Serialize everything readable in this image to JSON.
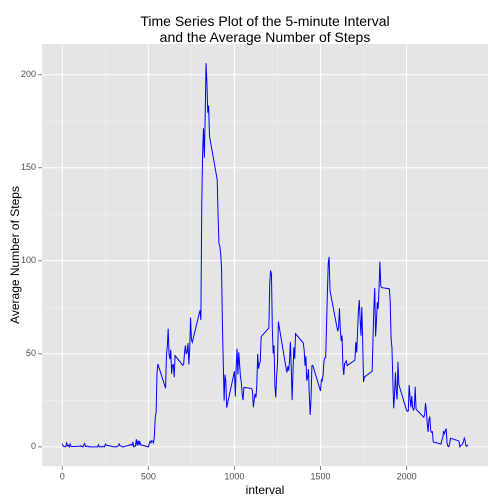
{
  "chart_data": {
    "type": "line",
    "title": "Time Series Plot of the 5-minute Interval\nand the Average Number of Steps",
    "xlabel": "interval",
    "ylabel": "Average Number of Steps",
    "x": [
      0,
      5,
      10,
      15,
      20,
      25,
      30,
      35,
      40,
      45,
      50,
      55,
      100,
      105,
      110,
      115,
      120,
      125,
      130,
      135,
      140,
      145,
      150,
      155,
      200,
      205,
      210,
      215,
      220,
      225,
      230,
      235,
      240,
      245,
      250,
      255,
      300,
      305,
      310,
      315,
      320,
      325,
      330,
      335,
      340,
      345,
      350,
      355,
      400,
      405,
      410,
      415,
      420,
      425,
      430,
      435,
      440,
      445,
      450,
      455,
      500,
      505,
      510,
      515,
      520,
      525,
      530,
      535,
      540,
      545,
      550,
      555,
      600,
      605,
      610,
      615,
      620,
      625,
      630,
      635,
      640,
      645,
      650,
      655,
      700,
      705,
      710,
      715,
      720,
      725,
      730,
      735,
      740,
      745,
      750,
      755,
      800,
      805,
      810,
      815,
      820,
      825,
      830,
      835,
      840,
      845,
      850,
      855,
      900,
      905,
      910,
      915,
      920,
      925,
      930,
      935,
      940,
      945,
      950,
      955,
      1000,
      1005,
      1010,
      1015,
      1020,
      1025,
      1030,
      1035,
      1040,
      1045,
      1050,
      1055,
      1100,
      1105,
      1110,
      1115,
      1120,
      1125,
      1130,
      1135,
      1140,
      1145,
      1150,
      1155,
      1200,
      1205,
      1210,
      1215,
      1220,
      1225,
      1230,
      1235,
      1240,
      1245,
      1250,
      1255,
      1300,
      1305,
      1310,
      1315,
      1320,
      1325,
      1330,
      1335,
      1340,
      1345,
      1350,
      1355,
      1400,
      1405,
      1410,
      1415,
      1420,
      1425,
      1430,
      1435,
      1440,
      1445,
      1450,
      1455,
      1500,
      1505,
      1510,
      1515,
      1520,
      1525,
      1530,
      1535,
      1540,
      1545,
      1550,
      1555,
      1600,
      1605,
      1610,
      1615,
      1620,
      1625,
      1630,
      1635,
      1640,
      1645,
      1650,
      1655,
      1700,
      1705,
      1710,
      1715,
      1720,
      1725,
      1730,
      1735,
      1740,
      1745,
      1750,
      1755,
      1800,
      1805,
      1810,
      1815,
      1820,
      1825,
      1830,
      1835,
      1840,
      1845,
      1850,
      1855,
      1900,
      1905,
      1910,
      1915,
      1920,
      1925,
      1930,
      1935,
      1940,
      1945,
      1950,
      1955,
      2000,
      2005,
      2010,
      2015,
      2020,
      2025,
      2030,
      2035,
      2040,
      2045,
      2050,
      2055,
      2100,
      2105,
      2110,
      2115,
      2120,
      2125,
      2130,
      2135,
      2140,
      2145,
      2150,
      2155,
      2200,
      2205,
      2210,
      2215,
      2220,
      2225,
      2230,
      2235,
      2240,
      2245,
      2250,
      2255,
      2300,
      2305,
      2310,
      2315,
      2320,
      2325,
      2330,
      2335,
      2340,
      2345,
      2350,
      2355
    ],
    "series": [
      {
        "name": "Average Number of Steps",
        "color": "#0000ff",
        "values": [
          1.7,
          0.3,
          0.1,
          0.2,
          0.1,
          2.1,
          0.5,
          0.9,
          0,
          1.5,
          0.3,
          0.1,
          0.3,
          0.7,
          0.2,
          0.3,
          0,
          1.1,
          1.8,
          0.2,
          0.2,
          0.4,
          0.3,
          0,
          0,
          0,
          1.1,
          0,
          0,
          0.1,
          0,
          0.2,
          0,
          0,
          1.5,
          0.9,
          0,
          0,
          0,
          0,
          0.2,
          0.6,
          1.6,
          0.6,
          0.5,
          0.1,
          0,
          0,
          1.2,
          0.9,
          2.6,
          0,
          0.3,
          0.4,
          4.1,
          0.7,
          3.5,
          0.8,
          3.1,
          1.1,
          0,
          1.6,
          3,
          2.2,
          3.3,
          3,
          2.1,
          6.1,
          16,
          18.3,
          39.5,
          44.5,
          31.5,
          49.3,
          53.8,
          63.5,
          50,
          47.1,
          52.2,
          39.3,
          44,
          44.2,
          37.4,
          49,
          43.8,
          44.4,
          50.5,
          54.5,
          49.9,
          51,
          55.7,
          44.3,
          52.3,
          69.5,
          57.8,
          56.2,
          73.4,
          68.2,
          129.4,
          157.5,
          171.2,
          155.4,
          177.3,
          206.2,
          195.9,
          179.6,
          183.4,
          167,
          143.5,
          124,
          109.1,
          108.1,
          103.7,
          96,
          66.2,
          45.2,
          24.8,
          38.8,
          35,
          21.1,
          40.6,
          27,
          42.4,
          52.7,
          38.9,
          50.8,
          44.3,
          37.4,
          34.7,
          28.3,
          25.1,
          31.9,
          31.4,
          29.7,
          21.3,
          25.5,
          28.4,
          26.5,
          33.4,
          50,
          42,
          44.6,
          46,
          59.2,
          63.9,
          87.7,
          94.8,
          92.8,
          63.4,
          50.2,
          54.5,
          32.4,
          26.5,
          37.7,
          45.1,
          67.3,
          42.3,
          39.9,
          43.3,
          41,
          46.2,
          56.4,
          42.8,
          25.1,
          40,
          53.5,
          47.3,
          60.8,
          55.8,
          52,
          43.6,
          48.7,
          35.5,
          37.5,
          41.8,
          27.5,
          17.1,
          26.1,
          43.6,
          43.8,
          30,
          36.1,
          35.5,
          38.8,
          46,
          47.8,
          48.1,
          65.3,
          82.9,
          98.7,
          102.1,
          84,
          62.1,
          64.1,
          74.5,
          63.2,
          56.9,
          59.8,
          43.9,
          38.6,
          44.7,
          45.5,
          46.2,
          43.7,
          46.6,
          56.3,
          50.7,
          61.2,
          72.7,
          78.9,
          68.9,
          59.7,
          75.1,
          56.5,
          34.8,
          37.5,
          40.7,
          58,
          74.7,
          85.3,
          59.3,
          67.8,
          77.7,
          74.2,
          85.3,
          99.5,
          86.6,
          85.6,
          84.9,
          77.8,
          58,
          53.4,
          36.3,
          20.7,
          27.4,
          40,
          30.2,
          25.5,
          45.7,
          33.5,
          19.6,
          19,
          19.3,
          33.3,
          26.8,
          21.2,
          27.3,
          21.3,
          19.5,
          21.3,
          32.3,
          20.2,
          15.9,
          17.2,
          23.5,
          19.2,
          12.5,
          8,
          14.7,
          16.3,
          8.7,
          7.8,
          8.1,
          2.6,
          1.5,
          3.7,
          4.8,
          8.5,
          7.1,
          8.7,
          9.8,
          2.2,
          0.3,
          0.1,
          1.6,
          4.6,
          3.3,
          2.8,
          0,
          0.8,
          1,
          1.6,
          2.6,
          4.7,
          3.3,
          0.6,
          0.2,
          1.1
        ]
      }
    ],
    "xlim": [
      -118,
      2473
    ],
    "ylim": [
      -10.3,
      216.5
    ],
    "xticks": [
      0,
      500,
      1000,
      1500,
      2000
    ],
    "yticks": [
      0,
      50,
      100,
      150,
      200
    ],
    "grid": true
  }
}
